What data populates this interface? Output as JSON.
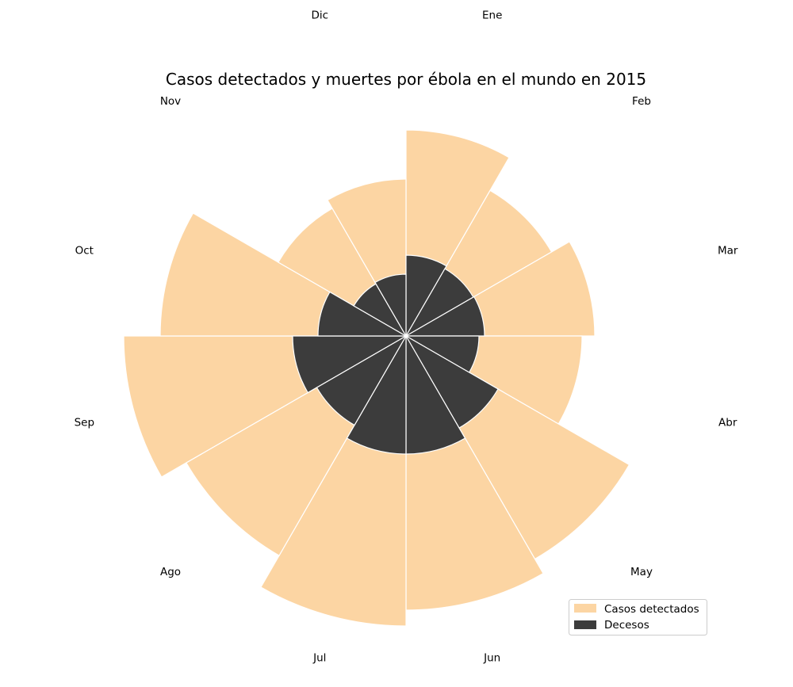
{
  "chart_data": {
    "type": "polar-bar",
    "title": "Casos detectados y muertes por ébola en el mundo en 2015",
    "categories": [
      "Ene",
      "Feb",
      "Mar",
      "Abr",
      "May",
      "Jun",
      "Jul",
      "Ago",
      "Sep",
      "Oct",
      "Nov",
      "Dic"
    ],
    "series": [
      {
        "name": "Casos detectados",
        "color": "#fcd5a3",
        "values": [
          260,
          212,
          238,
          222,
          325,
          346,
          366,
          320,
          356,
          310,
          186,
          198
        ]
      },
      {
        "name": "Decesos",
        "color": "#3c3c3c",
        "values": [
          102,
          98,
          99,
          92,
          134,
          149,
          149,
          130,
          143,
          111,
          76,
          78
        ]
      }
    ],
    "start_direction": "top",
    "rotation": "clockwise",
    "legend_placement": "bottom-right",
    "grid": false
  }
}
